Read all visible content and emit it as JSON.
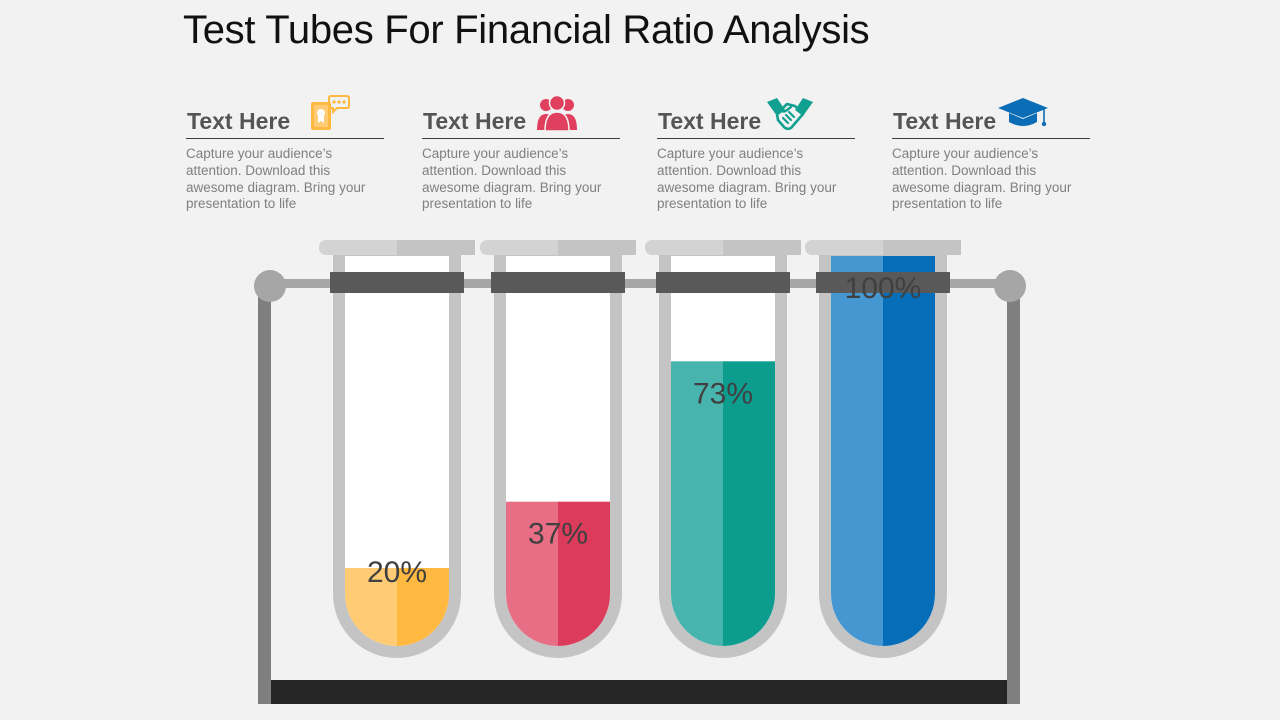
{
  "title": "Test Tubes For Financial Ratio Analysis",
  "cards": [
    {
      "title": "Text Here",
      "icon": "chat-document-icon",
      "color": "#FFB840",
      "description": "Capture your audience’s attention. Download this awesome diagram. Bring your presentation to life"
    },
    {
      "title": "Text Here",
      "icon": "people-group-icon",
      "color": "#E0405E",
      "description": "Capture your audience’s attention. Download this awesome diagram. Bring your presentation to life"
    },
    {
      "title": "Text Here",
      "icon": "handshake-icon",
      "color": "#12A090",
      "description": "Capture your audience’s attention. Download this awesome diagram. Bring your presentation to life"
    },
    {
      "title": "Text Here",
      "icon": "graduation-cap-icon",
      "color": "#0B6DB5",
      "description": "Capture your audience’s attention. Download this awesome diagram. Bring your presentation to life"
    }
  ],
  "tubes": [
    {
      "label": "20%",
      "fill_percent": 20,
      "color_light": "#FFCB74",
      "color_dark": "#FFB840"
    },
    {
      "label": "37%",
      "fill_percent": 37,
      "color_light": "#E76E84",
      "color_dark": "#DC3B5B"
    },
    {
      "label": "73%",
      "fill_percent": 73,
      "color_light": "#47B5AD",
      "color_dark": "#0C9D8F"
    },
    {
      "label": "100%",
      "fill_percent": 100,
      "color_light": "#4597D1",
      "color_dark": "#066EB8"
    }
  ]
}
